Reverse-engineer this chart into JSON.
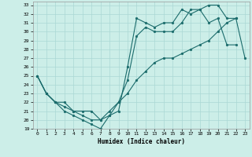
{
  "xlabel": "Humidex (Indice chaleur)",
  "xlim": [
    -0.5,
    23.5
  ],
  "ylim": [
    19,
    33.4
  ],
  "ytick_min": 19,
  "ytick_max": 33,
  "bg_color": "#cceee8",
  "grid_color": "#aad8d4",
  "line_color": "#1a6b6b",
  "line1_x": [
    0,
    1,
    2,
    3,
    4,
    5,
    6,
    7,
    8,
    9,
    10,
    11,
    12,
    13,
    14,
    15,
    16,
    17,
    18,
    19,
    20,
    21,
    22
  ],
  "line1_y": [
    25,
    23,
    22,
    21,
    20.5,
    20,
    19.5,
    19,
    20.5,
    21,
    26,
    31.5,
    31,
    30.5,
    31,
    31,
    32.5,
    32,
    32.5,
    31,
    31.5,
    28.5,
    28.5
  ],
  "line2_x": [
    0,
    1,
    2,
    3,
    4,
    5,
    6,
    7,
    8,
    9,
    10,
    11,
    12,
    13,
    14,
    15,
    16,
    17,
    18,
    19,
    20,
    21,
    22
  ],
  "line2_y": [
    25,
    23,
    22,
    21.5,
    21,
    20.5,
    20,
    20,
    21,
    22,
    24.5,
    29.5,
    30.5,
    30,
    30,
    30,
    31,
    32.5,
    32.5,
    33,
    33,
    31.5,
    31.5
  ],
  "line3_x": [
    0,
    1,
    2,
    3,
    4,
    5,
    6,
    7,
    8,
    9,
    10,
    11,
    12,
    13,
    14,
    15,
    16,
    17,
    18,
    19,
    20,
    21,
    22,
    23
  ],
  "line3_y": [
    25,
    23,
    22,
    22,
    21,
    21,
    21,
    20,
    20.5,
    22,
    23,
    24.5,
    25.5,
    26.5,
    27,
    27,
    27.5,
    28,
    28.5,
    29,
    30,
    31,
    31.5,
    27
  ]
}
